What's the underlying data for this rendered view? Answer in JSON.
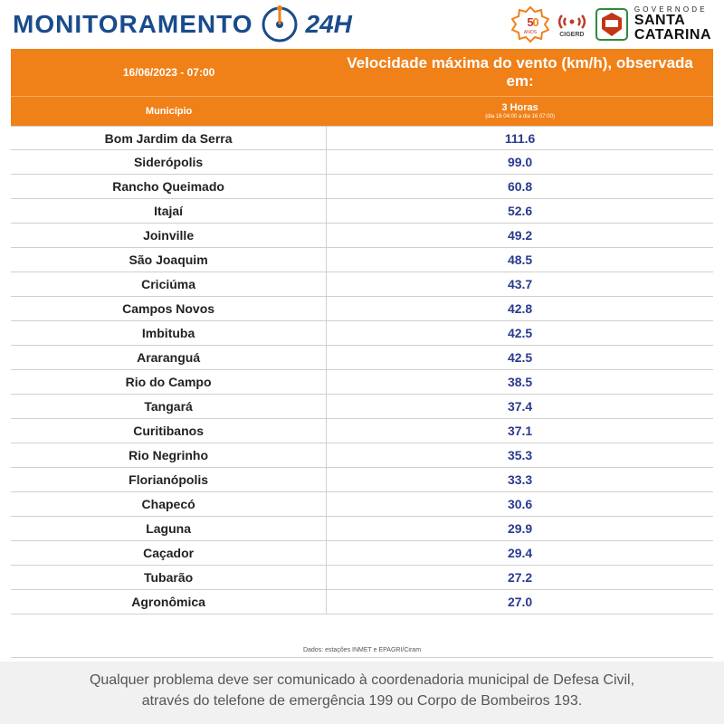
{
  "header": {
    "brand_word": "MONITORAMENTO",
    "brand_suffix": "24H",
    "cigerd_label": "CIGERD",
    "sc_gov_small": "G O V E R N O  D E",
    "sc_gov_line1": "SANTA",
    "sc_gov_line2": "CATARINA"
  },
  "colors": {
    "header_blue": "#1a4b8c",
    "table_header_bg": "#f08018",
    "value_color": "#2a3a8f",
    "row_border": "#cfcfcf",
    "footer_bg": "#f1f1f1",
    "footer_text": "#555555",
    "muni_text": "#222222",
    "orange_badge": "#f08018",
    "red_cigerd": "#c0392b",
    "sc_green": "#2e8b3d",
    "sc_red": "#c23616"
  },
  "table": {
    "timestamp": "16/06/2023 - 07:00",
    "title": "Velocidade máxima do vento (km/h), observada em:",
    "sub_left": "Município",
    "sub_right": "3 Horas",
    "sub_right_tiny": "(dia 16 04:00 a dia 16 07:00)",
    "source_note": "Dados: estações INMET e EPAGRI/Ciram",
    "rows": [
      {
        "municipio": "Bom Jardim da Serra",
        "valor": "111.6"
      },
      {
        "municipio": "Siderópolis",
        "valor": "99.0"
      },
      {
        "municipio": "Rancho Queimado",
        "valor": "60.8"
      },
      {
        "municipio": "Itajaí",
        "valor": "52.6"
      },
      {
        "municipio": "Joinville",
        "valor": "49.2"
      },
      {
        "municipio": "São Joaquim",
        "valor": "48.5"
      },
      {
        "municipio": "Criciúma",
        "valor": "43.7"
      },
      {
        "municipio": "Campos Novos",
        "valor": "42.8"
      },
      {
        "municipio": "Imbituba",
        "valor": "42.5"
      },
      {
        "municipio": "Araranguá",
        "valor": "42.5"
      },
      {
        "municipio": "Rio do Campo",
        "valor": "38.5"
      },
      {
        "municipio": "Tangará",
        "valor": "37.4"
      },
      {
        "municipio": "Curitibanos",
        "valor": "37.1"
      },
      {
        "municipio": "Rio Negrinho",
        "valor": "35.3"
      },
      {
        "municipio": "Florianópolis",
        "valor": "33.3"
      },
      {
        "municipio": "Chapecó",
        "valor": "30.6"
      },
      {
        "municipio": "Laguna",
        "valor": "29.9"
      },
      {
        "municipio": "Caçador",
        "valor": "29.4"
      },
      {
        "municipio": "Tubarão",
        "valor": "27.2"
      },
      {
        "municipio": "Agronômica",
        "valor": "27.0"
      }
    ]
  },
  "footer": {
    "line1": "Qualquer problema deve ser comunicado à coordenadoria municipal de Defesa Civil,",
    "line2": "através do telefone de emergência 199 ou Corpo de Bombeiros 193."
  }
}
